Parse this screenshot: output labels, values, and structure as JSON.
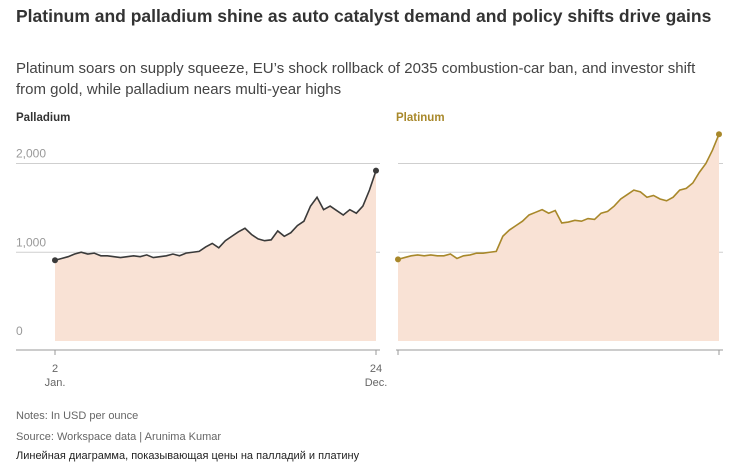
{
  "header": {
    "title": "Platinum and palladium shine as auto catalyst demand and policy shifts drive gains",
    "subtitle": "Platinum soars on supply squeeze, EU’s shock rollback of 2035 combustion-car ban, and investor shift from gold, while palladium nears multi-year highs"
  },
  "footer": {
    "notes": "Notes: In USD per ounce",
    "source": "Source: Workspace data | Arunima Kumar",
    "caption": "Линейная диаграмма, показывающая цены на палладий и платину"
  },
  "chart_data": [
    {
      "type": "area-line",
      "categories": [
        "2 Jan.",
        null,
        null,
        null,
        null,
        null,
        null,
        null,
        null,
        null,
        null,
        null,
        null,
        null,
        null,
        null,
        null,
        null,
        null,
        null,
        null,
        null,
        null,
        null,
        null,
        null,
        null,
        null,
        null,
        null,
        null,
        null,
        null,
        null,
        null,
        null,
        null,
        null,
        null,
        null,
        null,
        null,
        null,
        null,
        null,
        null,
        null,
        null,
        null,
        "24 Dec."
      ],
      "series": [
        {
          "name": "Palladium",
          "color": "#3a3a3a",
          "values": [
            910,
            930,
            950,
            980,
            1000,
            980,
            990,
            960,
            960,
            950,
            940,
            950,
            960,
            950,
            970,
            940,
            950,
            960,
            980,
            960,
            990,
            1000,
            1010,
            1060,
            1100,
            1050,
            1130,
            1180,
            1230,
            1270,
            1200,
            1150,
            1130,
            1140,
            1240,
            1180,
            1220,
            1300,
            1350,
            1520,
            1620,
            1480,
            1520,
            1470,
            1420,
            1480,
            1440,
            1520,
            1700,
            1920
          ]
        }
      ],
      "ylim": [
        0,
        2400
      ],
      "yticks": [
        0,
        {
          "value": 1000,
          "label": "1,000"
        },
        {
          "value": 2000,
          "label": "2,000"
        }
      ],
      "tick_labels": true,
      "grid": true,
      "fill": "#f9e2d5"
    },
    {
      "type": "area-line",
      "categories": [
        null,
        null,
        null,
        null,
        null,
        null,
        null,
        null,
        null,
        null,
        null,
        null,
        null,
        null,
        null,
        null,
        null,
        null,
        null,
        null,
        null,
        null,
        null,
        null,
        null,
        null,
        null,
        null,
        null,
        null,
        null,
        null,
        null,
        null,
        null,
        null,
        null,
        null,
        null,
        null,
        null,
        null,
        null,
        null,
        null,
        null,
        null,
        null,
        null,
        null
      ],
      "series": [
        {
          "name": "Platinum",
          "color": "#a8882a",
          "values": [
            920,
            940,
            960,
            970,
            960,
            970,
            960,
            960,
            980,
            930,
            960,
            970,
            990,
            990,
            1000,
            1010,
            1180,
            1250,
            1300,
            1350,
            1420,
            1450,
            1480,
            1440,
            1470,
            1330,
            1340,
            1360,
            1350,
            1380,
            1370,
            1440,
            1460,
            1520,
            1600,
            1650,
            1700,
            1680,
            1620,
            1640,
            1600,
            1580,
            1620,
            1700,
            1720,
            1780,
            1900,
            2000,
            2150,
            2330
          ]
        }
      ],
      "ylim": [
        0,
        2400
      ],
      "yticks": [
        0,
        1000,
        2000
      ],
      "tick_labels": false,
      "grid": true,
      "fill": "#f9e2d5"
    }
  ]
}
